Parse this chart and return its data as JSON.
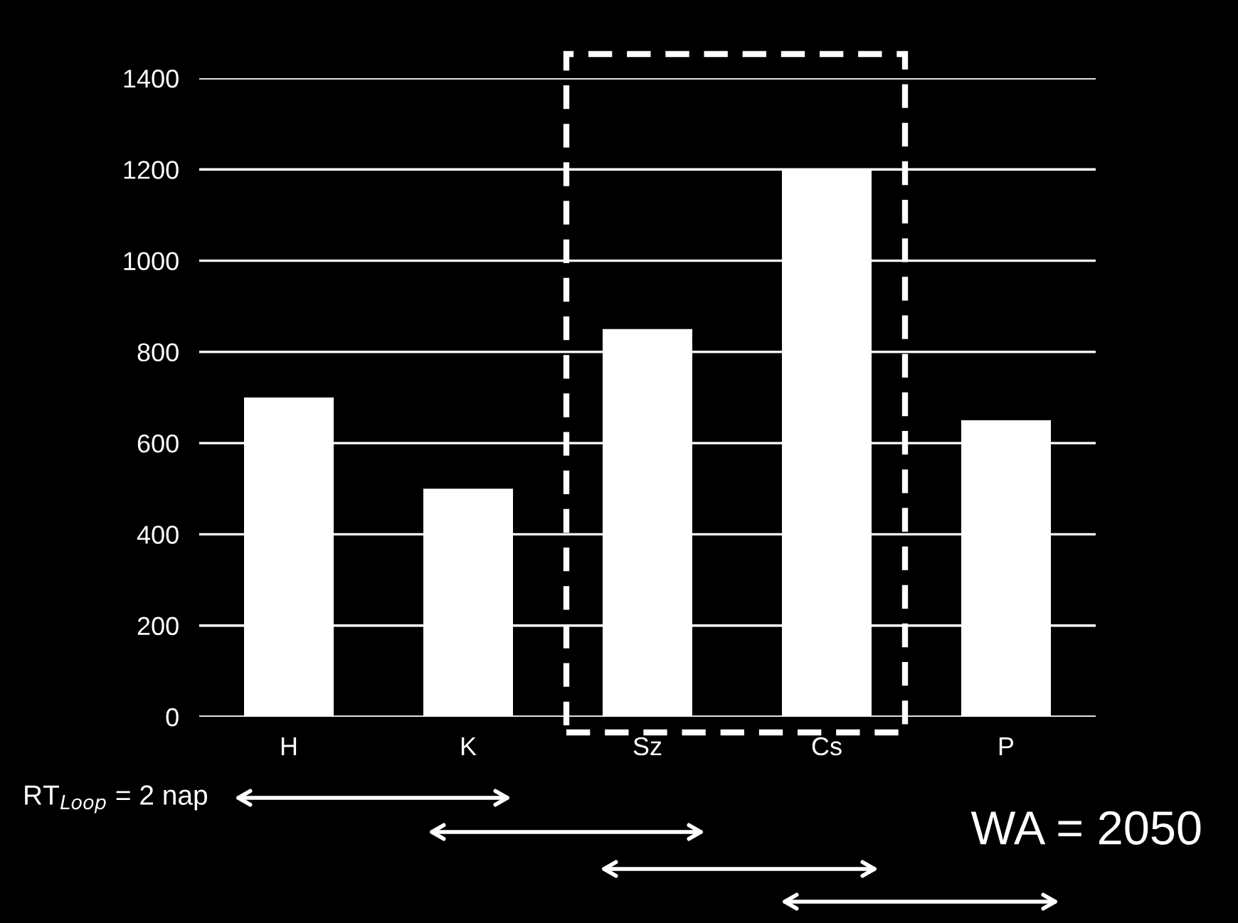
{
  "chart_data": {
    "type": "bar",
    "categories": [
      "H",
      "K",
      "Sz",
      "Cs",
      "P"
    ],
    "values": [
      700,
      500,
      850,
      1200,
      650
    ],
    "color": "#ffffff",
    "ylim": [
      0,
      1400
    ],
    "yticks": [
      0,
      200,
      400,
      600,
      800,
      1000,
      1200,
      1400
    ],
    "grid": "y",
    "annotations": [
      "RT$_{Loop}$ = 2 nap",
      "WA = 2050"
    ]
  }
}
